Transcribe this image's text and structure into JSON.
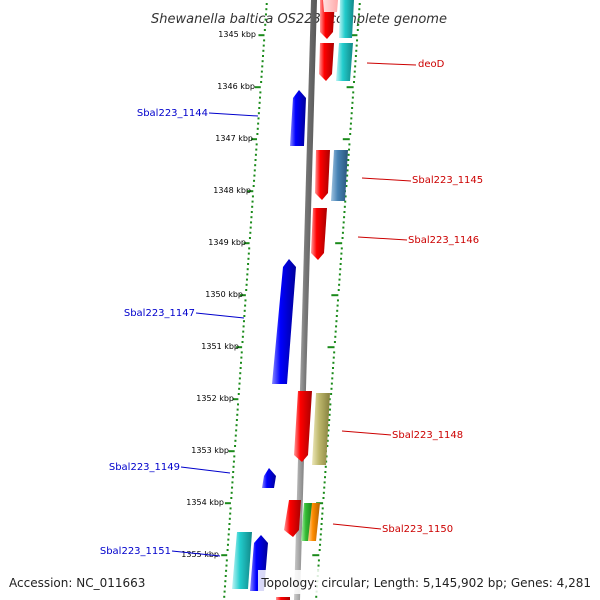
{
  "title": "Shewanella baltica OS223, complete genome",
  "accession": "Accession: NC_011663",
  "summary": "Topology: circular; Length: 5,145,902 bp; Genes: 4,281",
  "kbp_ticks": [
    "1345 kbp",
    "1346 kbp",
    "1347 kbp",
    "1348 kbp",
    "1349 kbp",
    "1350 kbp",
    "1351 kbp",
    "1352 kbp",
    "1353 kbp",
    "1354 kbp",
    "1355 kbp"
  ],
  "gene_labels": {
    "deoD": "deoD",
    "sbal_1144": "Sbal223_1144",
    "sbal_1145": "Sbal223_1145",
    "sbal_1146": "Sbal223_1146",
    "sbal_1147": "Sbal223_1147",
    "sbal_1148": "Sbal223_1148",
    "sbal_1149": "Sbal223_1149",
    "sbal_1150": "Sbal223_1150",
    "sbal_1151": "Sbal223_1151"
  },
  "colors": {
    "forward_cds": "#ff0000",
    "reverse_cds": "#0000ff",
    "backbone": "#888888",
    "tick": "#1a8a1a",
    "cog_cyan": "#22cccc",
    "cog_steel": "#4682b4",
    "cog_khaki": "#bdb76b",
    "cog_green": "#33bb33",
    "cog_orange": "#ff8c00"
  }
}
